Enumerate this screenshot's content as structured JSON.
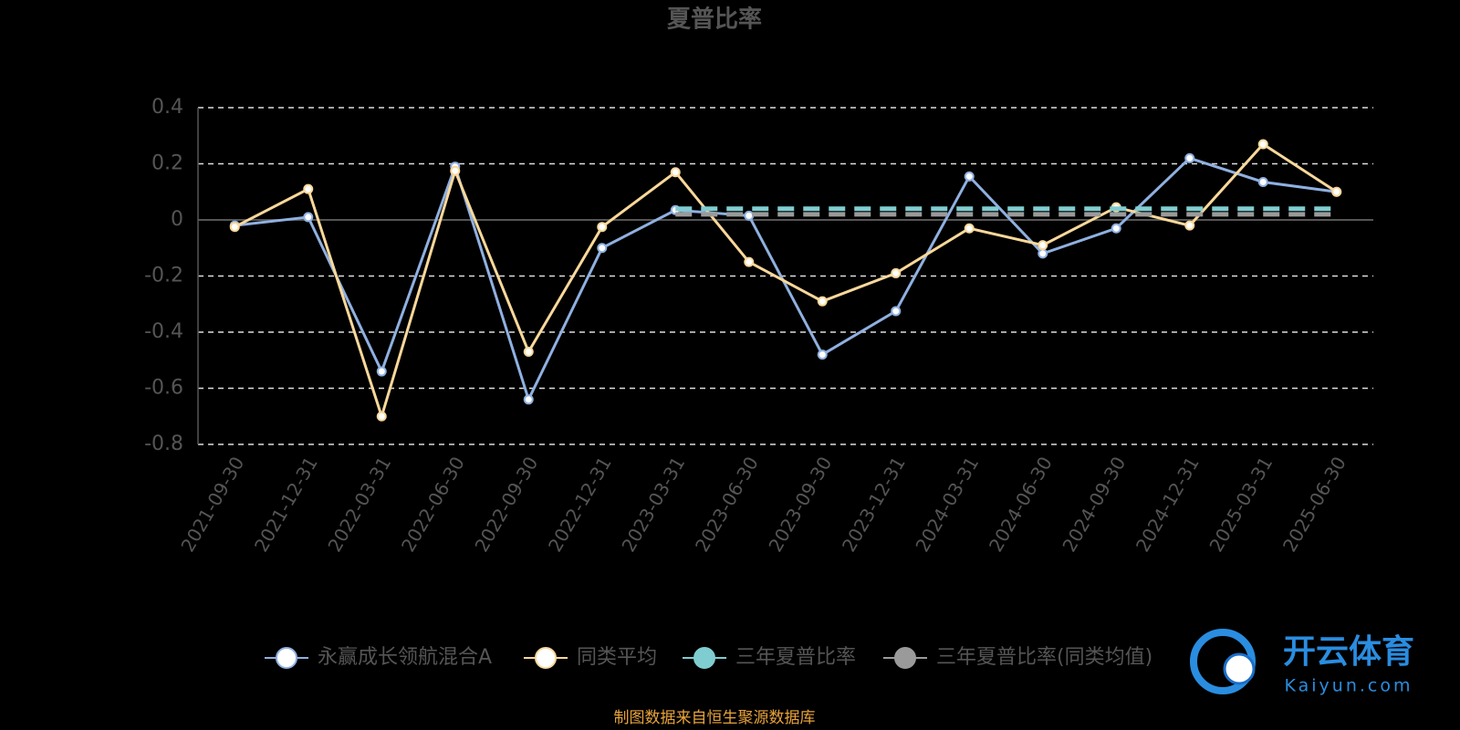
{
  "chart_data": {
    "type": "line",
    "title": "夏普比率",
    "categories": [
      "2021-09-30",
      "2021-12-31",
      "2022-03-31",
      "2022-06-30",
      "2022-09-30",
      "2022-12-31",
      "2023-03-31",
      "2023-06-30",
      "2023-09-30",
      "2023-12-31",
      "2024-03-31",
      "2024-06-30",
      "2024-09-30",
      "2024-12-31",
      "2025-03-31",
      "2025-06-30"
    ],
    "series": [
      {
        "name": "永赢成长领航混合A",
        "color": "#8fb0e0",
        "dashed": false,
        "markers": true,
        "values": [
          -0.02,
          0.01,
          -0.54,
          0.19,
          -0.64,
          -0.1,
          0.035,
          0.015,
          -0.48,
          -0.325,
          0.155,
          -0.12,
          -0.03,
          0.22,
          0.135,
          0.1
        ]
      },
      {
        "name": "同类平均",
        "color": "#f9d89a",
        "dashed": false,
        "markers": true,
        "values": [
          -0.025,
          0.11,
          -0.7,
          0.175,
          -0.47,
          -0.025,
          0.17,
          -0.15,
          -0.29,
          -0.19,
          -0.03,
          -0.09,
          0.045,
          -0.02,
          0.27,
          0.1
        ]
      },
      {
        "name": "三年夏普比率",
        "color": "#7fcdd1",
        "dashed": true,
        "markers": false,
        "values": [
          null,
          null,
          null,
          null,
          null,
          null,
          0.04,
          0.04,
          0.04,
          0.04,
          0.04,
          0.04,
          0.04,
          0.04,
          0.04,
          0.04
        ]
      },
      {
        "name": "三年夏普比率(同类均值)",
        "color": "#9a9a9a",
        "dashed": true,
        "markers": false,
        "values": [
          null,
          null,
          null,
          null,
          null,
          null,
          0.02,
          0.02,
          0.02,
          0.02,
          0.02,
          0.02,
          0.02,
          0.02,
          0.02,
          0.02
        ]
      }
    ],
    "ylim": [
      -0.8,
      0.4
    ],
    "yticks": [
      -0.8,
      -0.6,
      -0.4,
      -0.2,
      0,
      0.2,
      0.4
    ],
    "grid": true,
    "source": "制图数据来自恒生聚源数据库",
    "watermark": {
      "name": "开云体育",
      "url": "Kaiyun.com"
    }
  }
}
